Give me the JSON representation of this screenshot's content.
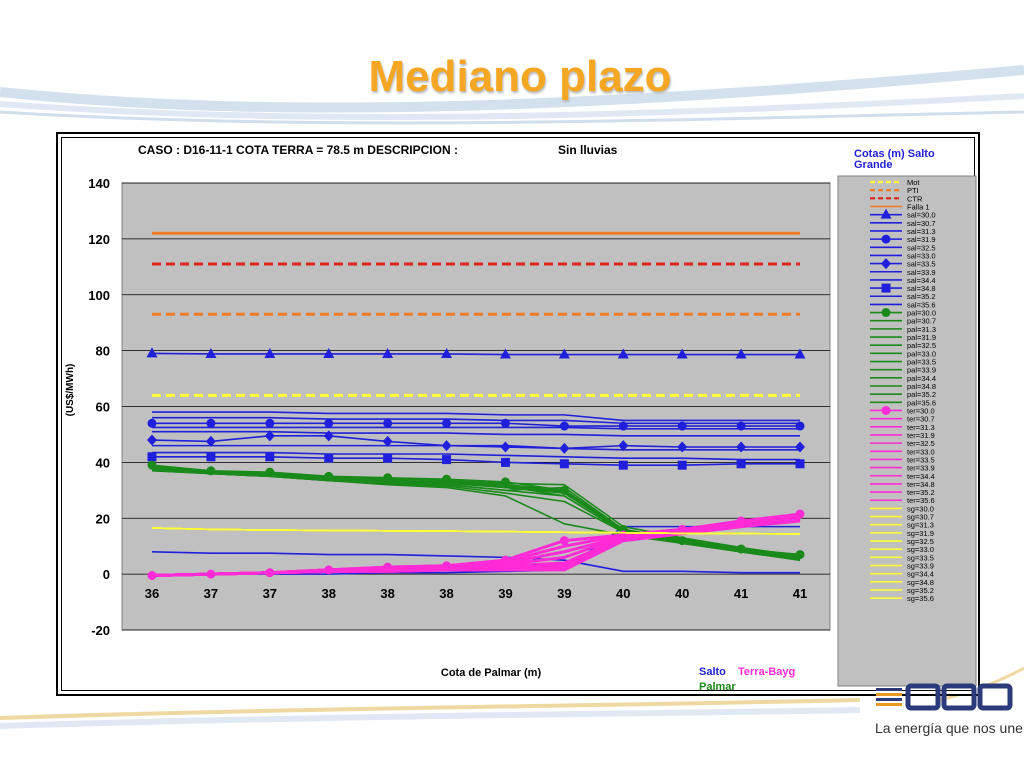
{
  "slide": {
    "title": "Mediano plazo",
    "brand_tagline": "La energía que nos une",
    "accent_color": "#f5a623"
  },
  "chart_data": {
    "type": "line",
    "title": "CASO : D16-11-1 COTA TERRA = 78.5 m  DESCRIPCION :",
    "subtitle": "Sin lluvias",
    "xlabel": "Cota de Palmar (m)",
    "ylabel": "(US$/MWh)",
    "categories": [
      "36",
      "37",
      "37",
      "38",
      "38",
      "38",
      "39",
      "39",
      "40",
      "40",
      "41",
      "41"
    ],
    "ylim": [
      -20,
      140
    ],
    "yticks": [
      -20,
      0,
      20,
      40,
      60,
      80,
      100,
      120,
      140
    ],
    "grid": true,
    "plot_background": "#c0c0c0",
    "legend_title": "Cotas (m) Salto Grande",
    "group_labels": [
      {
        "text": "Salto",
        "color": "#1f1fdc"
      },
      {
        "text": "Terra-Bayg",
        "color": "#ff2bd6"
      },
      {
        "text": "Palmar",
        "color": "#1a8a1a"
      }
    ],
    "series": [
      {
        "name": "Mot",
        "color": "#ffff33",
        "style": "dashed",
        "values": [
          64,
          64,
          64,
          64,
          64,
          64,
          64,
          64,
          64,
          64,
          64,
          64
        ]
      },
      {
        "name": "PTI",
        "color": "#f07c28",
        "style": "dashed",
        "values": [
          93,
          93,
          93,
          93,
          93,
          93,
          93,
          93,
          93,
          93,
          93,
          93
        ]
      },
      {
        "name": "CTR",
        "color": "#e0251b",
        "style": "dashed",
        "values": [
          111,
          111,
          111,
          111,
          111,
          111,
          111,
          111,
          111,
          111,
          111,
          111
        ]
      },
      {
        "name": "Falla 1",
        "color": "#f07c28",
        "style": "solid",
        "values": [
          122,
          122,
          122,
          122,
          122,
          122,
          122,
          122,
          122,
          122,
          122,
          122
        ]
      },
      {
        "name": "sal=30.0",
        "color": "#1f1fdc",
        "marker": "triangle",
        "values": [
          79,
          78.8,
          78.8,
          78.8,
          78.8,
          78.8,
          78.6,
          78.6,
          78.6,
          78.6,
          78.6,
          78.6
        ]
      },
      {
        "name": "sal=30.7",
        "color": "#1f1fdc",
        "values": [
          58,
          58,
          58,
          57.5,
          57.5,
          57.5,
          57,
          57,
          55,
          55,
          55,
          55
        ]
      },
      {
        "name": "sal=31.3",
        "color": "#1f1fdc",
        "values": [
          56,
          56,
          56,
          55.5,
          55.5,
          55.5,
          55,
          55,
          54,
          54,
          54,
          54
        ]
      },
      {
        "name": "sal=31.9",
        "color": "#1f1fdc",
        "marker": "circle",
        "values": [
          54,
          54,
          54,
          54,
          54,
          54,
          54,
          53,
          53,
          53,
          53,
          53
        ]
      },
      {
        "name": "sal=32.5",
        "color": "#1f1fdc",
        "values": [
          52.5,
          52.5,
          52.5,
          52.5,
          52.5,
          52.5,
          52.5,
          52.5,
          52,
          52,
          52,
          52
        ]
      },
      {
        "name": "sal=33.0",
        "color": "#1f1fdc",
        "values": [
          51,
          51,
          51,
          50.5,
          50.5,
          50.5,
          50,
          50,
          49.5,
          49.5,
          49.5,
          49.5
        ]
      },
      {
        "name": "sal=33.5",
        "color": "#1f1fdc",
        "marker": "diamond",
        "values": [
          48,
          47.5,
          49.5,
          49.5,
          47.5,
          46,
          45.5,
          45,
          46,
          45.5,
          45.5,
          45.5
        ]
      },
      {
        "name": "sal=33.9",
        "color": "#1f1fdc",
        "values": [
          46,
          46,
          46,
          46,
          46,
          46,
          46,
          45,
          44.5,
          44.5,
          44.5,
          44.5
        ]
      },
      {
        "name": "sal=34.4",
        "color": "#1f1fdc",
        "values": [
          43.5,
          43.5,
          43.5,
          43,
          43,
          43,
          42.5,
          42,
          41.5,
          41.5,
          41,
          41
        ]
      },
      {
        "name": "sal=34.8",
        "color": "#1f1fdc",
        "marker": "square",
        "values": [
          42,
          42,
          42,
          41.5,
          41.5,
          41,
          40,
          39.5,
          39,
          39,
          39.5,
          39.5
        ]
      },
      {
        "name": "sal=35.2",
        "color": "#1f1fdc",
        "values": [
          8,
          7.5,
          7.5,
          7,
          7,
          6.5,
          6,
          5,
          1,
          1,
          0.5,
          0.5
        ]
      },
      {
        "name": "sal=35.6",
        "color": "#1f1fdc",
        "values": [
          -0.5,
          0,
          0,
          0,
          0.5,
          0.5,
          1,
          1.5,
          17,
          17,
          17,
          17
        ]
      },
      {
        "name": "pal=30.0",
        "color": "#1a8a1a",
        "marker": "circle",
        "values": [
          39,
          37,
          36.5,
          35,
          34.5,
          34,
          33,
          30,
          16,
          12,
          9,
          7
        ]
      },
      {
        "name": "pal=30.7",
        "color": "#1a8a1a",
        "values": [
          38.5,
          36.5,
          36,
          34.5,
          34,
          33.5,
          32,
          29,
          15.5,
          12,
          8.5,
          6
        ]
      },
      {
        "name": "pal=31.3",
        "color": "#1a8a1a",
        "values": [
          38,
          36,
          35.5,
          34,
          33.5,
          33,
          31.5,
          28,
          15,
          11.5,
          8,
          5.5
        ]
      },
      {
        "name": "pal=31.9",
        "color": "#1a8a1a",
        "values": [
          37.5,
          36,
          35,
          33.5,
          32.5,
          31.5,
          29,
          26,
          15,
          11,
          8,
          5
        ]
      },
      {
        "name": "pal=32.5",
        "color": "#1a8a1a",
        "values": [
          37,
          36,
          35,
          33.5,
          32,
          31,
          28,
          18,
          14,
          11,
          8,
          5
        ]
      },
      {
        "name": "pal=33.0",
        "color": "#1a8a1a",
        "values": [
          38,
          36,
          35.5,
          34,
          33,
          32,
          30,
          31,
          16,
          12,
          9,
          6
        ]
      },
      {
        "name": "pal=33.5",
        "color": "#1a8a1a",
        "values": [
          38.5,
          36.5,
          36,
          34.5,
          34,
          33.5,
          32.5,
          32,
          17,
          13,
          9.5,
          6.5
        ]
      },
      {
        "name": "pal=33.9",
        "color": "#1a8a1a",
        "values": [
          38,
          36.5,
          36,
          34.5,
          34,
          33.5,
          32,
          30,
          16,
          12.5,
          9,
          6
        ]
      },
      {
        "name": "pal=34.4",
        "color": "#1a8a1a",
        "values": [
          37.5,
          36,
          35.5,
          34,
          33.5,
          33,
          31,
          29,
          15.5,
          12,
          8.5,
          6
        ]
      },
      {
        "name": "pal=34.8",
        "color": "#1a8a1a",
        "values": [
          37,
          36,
          35,
          33.5,
          32.5,
          32,
          30,
          28,
          15,
          11.5,
          8,
          5
        ]
      },
      {
        "name": "pal=35.2",
        "color": "#1a8a1a",
        "values": [
          37.5,
          36,
          35.5,
          34,
          33,
          32.5,
          31,
          29.5,
          15.5,
          12,
          8.5,
          5.5
        ]
      },
      {
        "name": "pal=35.6",
        "color": "#1a8a1a",
        "values": [
          38,
          36.5,
          36,
          34.5,
          34,
          33,
          31.5,
          30,
          16,
          12,
          9,
          6.5
        ]
      },
      {
        "name": "ter=30.0",
        "color": "#ff2bd6",
        "marker": "circle",
        "values": [
          -0.5,
          0,
          0.5,
          1.5,
          2.5,
          3,
          5,
          12,
          14,
          16,
          19,
          21.5
        ]
      },
      {
        "name": "ter=30.7",
        "color": "#ff2bd6",
        "values": [
          -0.5,
          0,
          0.5,
          1.5,
          2.5,
          3,
          4.5,
          10,
          14,
          16,
          19,
          21
        ]
      },
      {
        "name": "ter=31.3",
        "color": "#ff2bd6",
        "values": [
          -0.5,
          0,
          0.5,
          1.5,
          2,
          2.5,
          4,
          8,
          13.5,
          16,
          18.5,
          21
        ]
      },
      {
        "name": "ter=31.9",
        "color": "#ff2bd6",
        "values": [
          -0.5,
          0,
          0.5,
          1.5,
          2,
          2.5,
          3.5,
          6,
          13.5,
          15.5,
          18.5,
          20.5
        ]
      },
      {
        "name": "ter=32.5",
        "color": "#ff2bd6",
        "values": [
          -0.5,
          0,
          0.5,
          1,
          2,
          2.5,
          3,
          4,
          13,
          15.5,
          18,
          20.5
        ]
      },
      {
        "name": "ter=33.0",
        "color": "#ff2bd6",
        "values": [
          -0.5,
          0,
          0.5,
          1,
          2,
          2,
          2.5,
          3,
          13,
          15,
          18,
          20
        ]
      },
      {
        "name": "ter=33.5",
        "color": "#ff2bd6",
        "values": [
          -0.5,
          0,
          0.5,
          1,
          1.5,
          2,
          2.5,
          2.5,
          13,
          15,
          18,
          20
        ]
      },
      {
        "name": "ter=33.9",
        "color": "#ff2bd6",
        "values": [
          -0.5,
          0,
          0.5,
          1,
          1.5,
          2,
          2,
          2.5,
          12.5,
          15,
          17.5,
          20
        ]
      },
      {
        "name": "ter=34.4",
        "color": "#ff2bd6",
        "values": [
          -0.5,
          0,
          0.5,
          1,
          1.5,
          1.5,
          2,
          2,
          12.5,
          15,
          17.5,
          19.5
        ]
      },
      {
        "name": "ter=34.8",
        "color": "#ff2bd6",
        "values": [
          -0.5,
          0,
          0.5,
          1,
          1.5,
          1.5,
          2,
          2,
          12.5,
          14.5,
          17.5,
          19.5
        ]
      },
      {
        "name": "ter=35.2",
        "color": "#ff2bd6",
        "values": [
          -0.5,
          0,
          0.5,
          1,
          1,
          1.5,
          1.5,
          2,
          12,
          14.5,
          17,
          19.5
        ]
      },
      {
        "name": "ter=35.6",
        "color": "#ff2bd6",
        "values": [
          -0.5,
          0,
          0.5,
          1,
          1,
          1.5,
          1.5,
          1.5,
          12,
          14.5,
          17,
          19
        ]
      },
      {
        "name": "sg=30.0",
        "color": "#ffff33",
        "values": [
          16.5,
          16,
          15.8,
          15.6,
          15.5,
          15.4,
          15.2,
          15,
          14.8,
          14.6,
          14.5,
          14.4
        ]
      },
      {
        "name": "sg=30.7",
        "color": "#ffff33",
        "values": [
          16.5,
          16,
          15.8,
          15.6,
          15.5,
          15.4,
          15.2,
          15,
          14.8,
          14.6,
          14.5,
          14.4
        ]
      },
      {
        "name": "sg=31.3",
        "color": "#ffff33",
        "values": [
          16.5,
          16,
          15.8,
          15.6,
          15.5,
          15.4,
          15.2,
          15,
          14.8,
          14.6,
          14.5,
          14.4
        ]
      },
      {
        "name": "sg=31.9",
        "color": "#ffff33",
        "values": [
          16.5,
          16,
          15.8,
          15.6,
          15.5,
          15.4,
          15.2,
          15,
          14.8,
          14.6,
          14.5,
          14.4
        ]
      },
      {
        "name": "sg=32.5",
        "color": "#ffff33",
        "values": [
          16.5,
          16,
          15.8,
          15.6,
          15.5,
          15.4,
          15.2,
          15,
          14.8,
          14.6,
          14.5,
          14.4
        ]
      },
      {
        "name": "sg=33.0",
        "color": "#ffff33",
        "values": [
          16.5,
          16,
          15.8,
          15.6,
          15.5,
          15.4,
          15.2,
          15,
          14.8,
          14.6,
          14.5,
          14.4
        ]
      },
      {
        "name": "sg=33.5",
        "color": "#ffff33",
        "values": [
          16.5,
          16,
          15.8,
          15.6,
          15.5,
          15.4,
          15.2,
          15,
          14.8,
          14.6,
          14.5,
          14.4
        ]
      },
      {
        "name": "sg=33.9",
        "color": "#ffff33",
        "values": [
          16.5,
          16,
          15.8,
          15.6,
          15.5,
          15.4,
          15.2,
          15,
          14.8,
          14.6,
          14.5,
          14.4
        ]
      },
      {
        "name": "sg=34.4",
        "color": "#ffff33",
        "values": [
          16.5,
          16,
          15.8,
          15.6,
          15.5,
          15.4,
          15.2,
          15,
          14.8,
          14.6,
          14.5,
          14.4
        ]
      },
      {
        "name": "sg=34.8",
        "color": "#ffff33",
        "values": [
          16.5,
          16,
          15.8,
          15.6,
          15.5,
          15.4,
          15.2,
          15,
          14.8,
          14.6,
          14.5,
          14.4
        ]
      },
      {
        "name": "sg=35.2",
        "color": "#ffff33",
        "values": [
          16.5,
          16,
          15.8,
          15.6,
          15.5,
          15.4,
          15.2,
          15,
          14.8,
          14.6,
          14.5,
          14.4
        ]
      },
      {
        "name": "sg=35.6",
        "color": "#ffff33",
        "values": [
          16.5,
          16,
          15.8,
          15.6,
          15.5,
          15.4,
          15.2,
          15,
          14.8,
          14.6,
          14.5,
          14.4
        ]
      }
    ]
  }
}
